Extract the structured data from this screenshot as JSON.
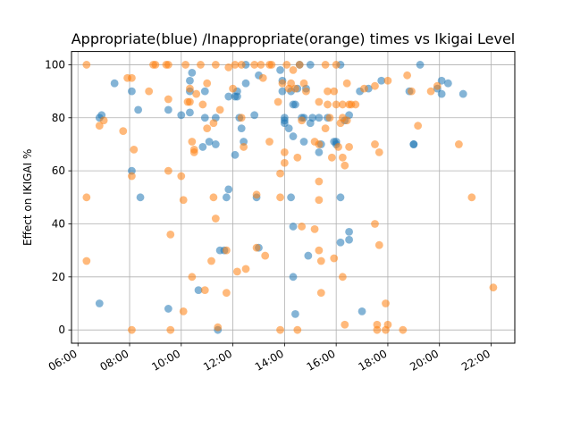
{
  "chart_data": {
    "type": "scatter",
    "title": "Appropriate(blue) /Inappropriate(orange) times vs Ikigai Level",
    "xlabel": "",
    "ylabel": "Effect on IKIGAI %",
    "x_ticks": [
      "06:00",
      "08:00",
      "10:00",
      "12:00",
      "14:00",
      "16:00",
      "18:00",
      "20:00",
      "22:00"
    ],
    "y_ticks": [
      "0",
      "20",
      "40",
      "60",
      "80",
      "100"
    ],
    "xlim": [
      "05:45",
      "22:55"
    ],
    "ylim": [
      -5,
      105
    ],
    "grid": true,
    "series": [
      {
        "color": "#1f77b4",
        "points": [
          [
            "06:50",
            10
          ],
          [
            "06:50",
            80
          ],
          [
            "06:55",
            81
          ],
          [
            "07:25",
            93
          ],
          [
            "08:05",
            60
          ],
          [
            "08:05",
            90
          ],
          [
            "08:20",
            83
          ],
          [
            "08:25",
            50
          ],
          [
            "09:30",
            83
          ],
          [
            "09:30",
            8
          ],
          [
            "10:00",
            81
          ],
          [
            "10:20",
            94
          ],
          [
            "10:20",
            90
          ],
          [
            "10:20",
            82
          ],
          [
            "10:25",
            97
          ],
          [
            "10:40",
            15
          ],
          [
            "10:50",
            69
          ],
          [
            "10:55",
            90
          ],
          [
            "10:55",
            80
          ],
          [
            "11:05",
            71
          ],
          [
            "11:20",
            70
          ],
          [
            "11:20",
            80
          ],
          [
            "11:25",
            0
          ],
          [
            "11:30",
            30
          ],
          [
            "11:40",
            30
          ],
          [
            "11:45",
            50
          ],
          [
            "11:50",
            53
          ],
          [
            "11:50",
            88
          ],
          [
            "12:05",
            66
          ],
          [
            "12:05",
            88
          ],
          [
            "12:10",
            90
          ],
          [
            "12:10",
            88
          ],
          [
            "12:15",
            80
          ],
          [
            "12:20",
            76
          ],
          [
            "12:25",
            71
          ],
          [
            "12:30",
            93
          ],
          [
            "12:30",
            100
          ],
          [
            "12:50",
            81
          ],
          [
            "12:55",
            50
          ],
          [
            "13:00",
            96
          ],
          [
            "13:00",
            31
          ],
          [
            "13:50",
            98
          ],
          [
            "13:55",
            94
          ],
          [
            "13:55",
            90
          ],
          [
            "14:00",
            78
          ],
          [
            "14:00",
            79
          ],
          [
            "14:00",
            80
          ],
          [
            "14:10",
            76
          ],
          [
            "14:15",
            50
          ],
          [
            "14:15",
            90
          ],
          [
            "14:20",
            85
          ],
          [
            "14:20",
            73
          ],
          [
            "14:20",
            20
          ],
          [
            "14:20",
            39
          ],
          [
            "14:25",
            6
          ],
          [
            "14:25",
            85
          ],
          [
            "14:30",
            91
          ],
          [
            "14:35",
            100
          ],
          [
            "14:40",
            80
          ],
          [
            "14:45",
            80
          ],
          [
            "14:45",
            71
          ],
          [
            "14:50",
            91
          ],
          [
            "14:55",
            28
          ],
          [
            "15:00",
            100
          ],
          [
            "15:00",
            78
          ],
          [
            "15:05",
            80
          ],
          [
            "15:20",
            80
          ],
          [
            "15:20",
            67
          ],
          [
            "15:25",
            70
          ],
          [
            "15:40",
            80
          ],
          [
            "15:55",
            71
          ],
          [
            "16:00",
            71
          ],
          [
            "16:00",
            70
          ],
          [
            "16:10",
            100
          ],
          [
            "16:10",
            50
          ],
          [
            "16:10",
            33
          ],
          [
            "16:20",
            79
          ],
          [
            "16:30",
            81
          ],
          [
            "16:30",
            37
          ],
          [
            "16:30",
            34
          ],
          [
            "16:55",
            90
          ],
          [
            "17:00",
            7
          ],
          [
            "17:15",
            91
          ],
          [
            "17:45",
            94
          ],
          [
            "18:50",
            90
          ],
          [
            "19:00",
            70
          ],
          [
            "19:00",
            70
          ],
          [
            "19:15",
            100
          ],
          [
            "19:55",
            91
          ],
          [
            "20:05",
            94
          ],
          [
            "20:05",
            89
          ],
          [
            "20:20",
            93
          ],
          [
            "20:55",
            89
          ]
        ]
      },
      {
        "color": "#ff7f0e",
        "points": [
          [
            "06:20",
            100
          ],
          [
            "06:20",
            50
          ],
          [
            "06:20",
            26
          ],
          [
            "06:50",
            77
          ],
          [
            "07:00",
            79
          ],
          [
            "07:45",
            75
          ],
          [
            "07:55",
            95
          ],
          [
            "08:05",
            95
          ],
          [
            "08:05",
            0
          ],
          [
            "08:05",
            58
          ],
          [
            "08:10",
            68
          ],
          [
            "08:45",
            90
          ],
          [
            "08:55",
            100
          ],
          [
            "09:00",
            100
          ],
          [
            "09:25",
            100
          ],
          [
            "09:30",
            100
          ],
          [
            "09:30",
            87
          ],
          [
            "09:30",
            60
          ],
          [
            "09:35",
            36
          ],
          [
            "09:35",
            0
          ],
          [
            "10:00",
            58
          ],
          [
            "10:05",
            49
          ],
          [
            "10:05",
            7
          ],
          [
            "10:10",
            100
          ],
          [
            "10:15",
            86
          ],
          [
            "10:20",
            86
          ],
          [
            "10:20",
            91
          ],
          [
            "10:25",
            20
          ],
          [
            "10:25",
            71
          ],
          [
            "10:30",
            67
          ],
          [
            "10:30",
            68
          ],
          [
            "10:35",
            89
          ],
          [
            "10:45",
            100
          ],
          [
            "10:50",
            85
          ],
          [
            "10:55",
            15
          ],
          [
            "11:00",
            93
          ],
          [
            "11:00",
            76
          ],
          [
            "11:10",
            26
          ],
          [
            "11:15",
            50
          ],
          [
            "11:15",
            78
          ],
          [
            "11:20",
            100
          ],
          [
            "11:20",
            42
          ],
          [
            "11:25",
            1
          ],
          [
            "11:30",
            83
          ],
          [
            "11:45",
            30
          ],
          [
            "11:45",
            14
          ],
          [
            "11:50",
            99
          ],
          [
            "12:00",
            91
          ],
          [
            "12:05",
            100
          ],
          [
            "12:10",
            22
          ],
          [
            "12:20",
            100
          ],
          [
            "12:20",
            80
          ],
          [
            "12:25",
            69
          ],
          [
            "12:30",
            23
          ],
          [
            "12:50",
            100
          ],
          [
            "12:55",
            51
          ],
          [
            "12:55",
            31
          ],
          [
            "13:05",
            100
          ],
          [
            "13:10",
            95
          ],
          [
            "13:15",
            28
          ],
          [
            "13:25",
            100
          ],
          [
            "13:25",
            71
          ],
          [
            "13:30",
            100
          ],
          [
            "13:45",
            86
          ],
          [
            "13:50",
            59
          ],
          [
            "13:50",
            0
          ],
          [
            "13:50",
            50
          ],
          [
            "13:55",
            93
          ],
          [
            "14:00",
            67
          ],
          [
            "14:00",
            63
          ],
          [
            "14:05",
            100
          ],
          [
            "14:10",
            91
          ],
          [
            "14:15",
            93
          ],
          [
            "14:20",
            98
          ],
          [
            "14:25",
            91
          ],
          [
            "14:30",
            65
          ],
          [
            "14:30",
            0
          ],
          [
            "14:35",
            100
          ],
          [
            "14:40",
            39
          ],
          [
            "14:40",
            79
          ],
          [
            "14:45",
            93
          ],
          [
            "14:50",
            90
          ],
          [
            "15:10",
            71
          ],
          [
            "15:10",
            38
          ],
          [
            "15:20",
            86
          ],
          [
            "15:20",
            70
          ],
          [
            "15:20",
            49
          ],
          [
            "15:20",
            30
          ],
          [
            "15:20",
            56
          ],
          [
            "15:25",
            26
          ],
          [
            "15:25",
            14
          ],
          [
            "15:35",
            100
          ],
          [
            "15:35",
            76
          ],
          [
            "15:40",
            90
          ],
          [
            "15:40",
            85
          ],
          [
            "15:45",
            80
          ],
          [
            "15:50",
            65
          ],
          [
            "15:55",
            27
          ],
          [
            "15:55",
            90
          ],
          [
            "16:00",
            85
          ],
          [
            "16:00",
            100
          ],
          [
            "16:05",
            69
          ],
          [
            "16:10",
            78
          ],
          [
            "16:15",
            80
          ],
          [
            "16:15",
            65
          ],
          [
            "16:15",
            85
          ],
          [
            "16:15",
            20
          ],
          [
            "16:20",
            62
          ],
          [
            "16:20",
            2
          ],
          [
            "16:25",
            79
          ],
          [
            "16:25",
            93
          ],
          [
            "16:30",
            85
          ],
          [
            "16:30",
            69
          ],
          [
            "16:35",
            85
          ],
          [
            "16:45",
            85
          ],
          [
            "17:05",
            91
          ],
          [
            "17:30",
            70
          ],
          [
            "17:30",
            92
          ],
          [
            "17:30",
            40
          ],
          [
            "17:35",
            0
          ],
          [
            "17:35",
            2
          ],
          [
            "17:40",
            32
          ],
          [
            "17:40",
            67
          ],
          [
            "17:55",
            0
          ],
          [
            "17:55",
            10
          ],
          [
            "18:00",
            94
          ],
          [
            "18:00",
            2
          ],
          [
            "18:35",
            0
          ],
          [
            "18:45",
            96
          ],
          [
            "18:55",
            90
          ],
          [
            "19:10",
            77
          ],
          [
            "19:40",
            90
          ],
          [
            "19:55",
            92
          ],
          [
            "20:45",
            70
          ],
          [
            "21:15",
            50
          ],
          [
            "22:05",
            16
          ]
        ]
      }
    ]
  }
}
